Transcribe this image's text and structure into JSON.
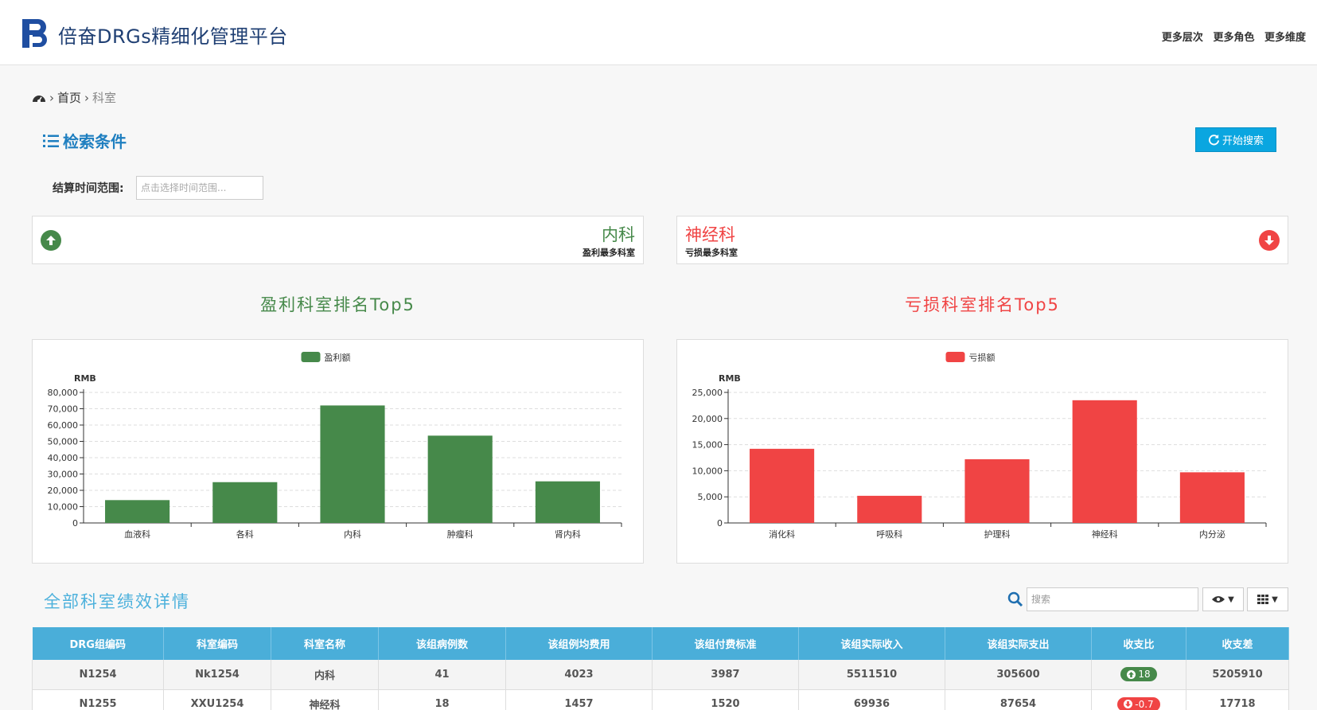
{
  "header": {
    "title": "倍奋DRGs精细化管理平台",
    "links": [
      "更多层次",
      "更多角色",
      "更多维度"
    ]
  },
  "breadcrumb": {
    "home": "首页",
    "current": "科室"
  },
  "filter": {
    "heading": "检索条件",
    "search_button": "开始搜索",
    "time_label": "结算时间范围:",
    "time_placeholder": "点击选择时间范围..."
  },
  "summary": {
    "profit": {
      "dept": "内科",
      "caption": "盈利最多科室"
    },
    "loss": {
      "dept": "神经科",
      "caption": "亏损最多科室"
    }
  },
  "chart_data": [
    {
      "type": "bar",
      "title": "盈利科室排名Top5",
      "color": "#46894a",
      "ylabel": "RMB",
      "categories": [
        "血液科",
        "各科",
        "内科",
        "肿瘤科",
        "肾内科"
      ],
      "series": [
        {
          "name": "盈利额",
          "values": [
            14000,
            25000,
            72000,
            53500,
            25500
          ]
        }
      ],
      "ylim": [
        0,
        80000
      ],
      "yticks": [
        0,
        10000,
        20000,
        30000,
        40000,
        50000,
        60000,
        70000,
        80000
      ],
      "ytick_labels": [
        "0",
        "10,000",
        "20,000",
        "30,000",
        "40,000",
        "50,000",
        "60,000",
        "70,000",
        "80,000"
      ],
      "grid": true,
      "legend": "top-center"
    },
    {
      "type": "bar",
      "title": "亏损科室排名Top5",
      "color": "#f04444",
      "ylabel": "RMB",
      "categories": [
        "消化科",
        "呼吸科",
        "护理科",
        "神经科",
        "内分泌"
      ],
      "series": [
        {
          "name": "亏损额",
          "values": [
            14200,
            5200,
            12200,
            23500,
            9700
          ]
        }
      ],
      "ylim": [
        0,
        25000
      ],
      "yticks": [
        0,
        5000,
        10000,
        15000,
        20000,
        25000
      ],
      "ytick_labels": [
        "0",
        "5,000",
        "10,000",
        "15,000",
        "20,000",
        "25,000"
      ],
      "grid": true,
      "legend": "top-center"
    }
  ],
  "details": {
    "title": "全部科室绩效详情",
    "search_placeholder": "搜索",
    "columns": [
      "DRG组编码",
      "科室编码",
      "科室名称",
      "该组病例数",
      "该组例均费用",
      "该组付费标准",
      "该组实际收入",
      "该组实际支出",
      "收支比",
      "收支差"
    ],
    "rows": [
      [
        "N1254",
        "Nk1254",
        "内科",
        "41",
        "4023",
        "3987",
        "5511510",
        "305600",
        "18",
        "5205910"
      ],
      [
        "N1255",
        "XXU1254",
        "神经科",
        "18",
        "1457",
        "1520",
        "69936",
        "87654",
        "-0.7",
        "17718"
      ]
    ],
    "ratio_direction": [
      "up",
      "down"
    ]
  },
  "icons": {
    "logo": "pb-logo-icon",
    "home": "dashboard-icon",
    "list": "ordered-list-icon",
    "refresh": "refresh-icon",
    "up": "arrow-up-circle-icon",
    "down": "arrow-down-circle-icon",
    "search": "search-icon",
    "eye": "eye-icon",
    "columns": "grid-icon"
  }
}
